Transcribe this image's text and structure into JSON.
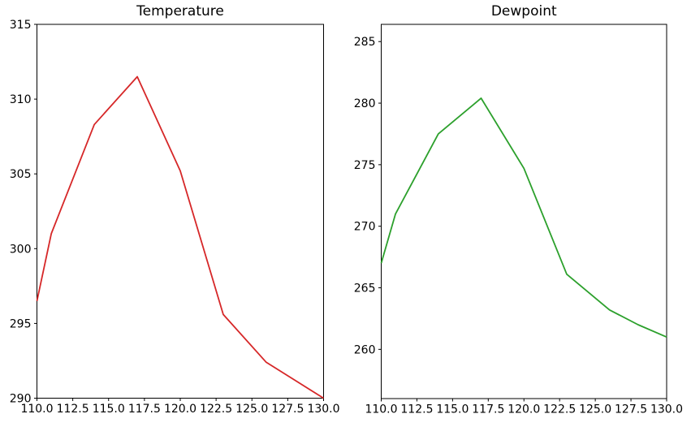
{
  "figure": {
    "background": "#ffffff",
    "text_color": "#000000",
    "spine_color": "#000000"
  },
  "chart_data": [
    {
      "type": "line",
      "title": "Temperature",
      "xlabel": "",
      "ylabel": "",
      "grid": false,
      "legend": null,
      "xlim": [
        110,
        130
      ],
      "ylim": [
        290,
        315
      ],
      "xticks": [
        110,
        112.5,
        115,
        117.5,
        120,
        122.5,
        125,
        127.5,
        130
      ],
      "xtick_labels": [
        "110.0",
        "112.5",
        "115.0",
        "117.5",
        "120.0",
        "122.5",
        "125.0",
        "127.5",
        "130.0"
      ],
      "yticks": [
        290,
        295,
        300,
        305,
        310,
        315
      ],
      "ytick_labels": [
        "290",
        "295",
        "300",
        "305",
        "310",
        "315"
      ],
      "series": [
        {
          "name": "temperature",
          "color": "#d62728",
          "x": [
            110,
            111,
            114,
            117,
            120,
            123,
            126,
            128,
            130
          ],
          "y": [
            296.5,
            301.0,
            308.3,
            311.5,
            305.2,
            295.6,
            292.4,
            291.2,
            290.0
          ]
        }
      ]
    },
    {
      "type": "line",
      "title": "Dewpoint",
      "xlabel": "",
      "ylabel": "",
      "grid": false,
      "legend": null,
      "xlim": [
        110,
        130
      ],
      "ylim": [
        256,
        286.4
      ],
      "xticks": [
        110,
        112.5,
        115,
        117.5,
        120,
        122.5,
        125,
        127.5,
        130
      ],
      "xtick_labels": [
        "110.0",
        "112.5",
        "115.0",
        "117.5",
        "120.0",
        "122.5",
        "125.0",
        "127.5",
        "130.0"
      ],
      "yticks": [
        260,
        265,
        270,
        275,
        280,
        285
      ],
      "ytick_labels": [
        "260",
        "265",
        "270",
        "275",
        "280",
        "285"
      ],
      "series": [
        {
          "name": "dewpoint",
          "color": "#2ca02c",
          "x": [
            110,
            111,
            114,
            117,
            120,
            123,
            126,
            128,
            130
          ],
          "y": [
            267.0,
            271.0,
            277.5,
            280.4,
            274.7,
            266.1,
            263.2,
            262.0,
            261.0
          ]
        }
      ]
    }
  ]
}
